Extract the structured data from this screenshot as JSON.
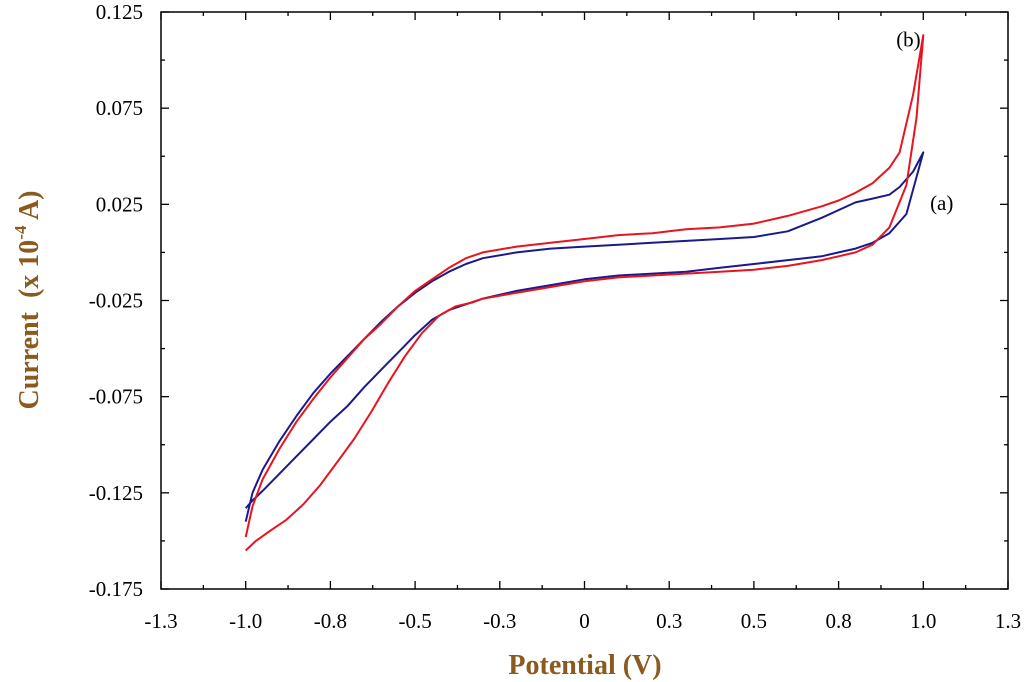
{
  "chart_data": {
    "type": "line",
    "xlabel": "Potential (V)",
    "ylabel_main": "Current",
    "ylabel_unit_prefix": "(x 10",
    "ylabel_unit_exp": "-4",
    "ylabel_unit_suffix": " A)",
    "xlim": [
      -1.25,
      1.25
    ],
    "ylim": [
      -0.175,
      0.125
    ],
    "x_ticks": [
      {
        "value": -1.25,
        "label": "-1.3"
      },
      {
        "value": -1.0,
        "label": "-1.0"
      },
      {
        "value": -0.75,
        "label": "-0.8"
      },
      {
        "value": -0.5,
        "label": "-0.5"
      },
      {
        "value": -0.25,
        "label": "-0.3"
      },
      {
        "value": 0.0,
        "label": "0"
      },
      {
        "value": 0.25,
        "label": "0.3"
      },
      {
        "value": 0.5,
        "label": "0.5"
      },
      {
        "value": 0.75,
        "label": "0.8"
      },
      {
        "value": 1.0,
        "label": "1.0"
      },
      {
        "value": 1.25,
        "label": "1.3"
      }
    ],
    "y_ticks": [
      {
        "value": 0.125,
        "label": "0.125"
      },
      {
        "value": 0.075,
        "label": "0.075"
      },
      {
        "value": 0.025,
        "label": "0.025"
      },
      {
        "value": -0.025,
        "label": "-0.025"
      },
      {
        "value": -0.075,
        "label": "-0.075"
      },
      {
        "value": -0.125,
        "label": "-0.125"
      },
      {
        "value": -0.175,
        "label": "-0.175"
      }
    ],
    "grid": false,
    "series": [
      {
        "name": "(a)",
        "color": "#1a1a8c",
        "x": [
          -1.0,
          -0.98,
          -0.95,
          -0.9,
          -0.85,
          -0.8,
          -0.75,
          -0.7,
          -0.65,
          -0.6,
          -0.55,
          -0.5,
          -0.45,
          -0.4,
          -0.35,
          -0.3,
          -0.2,
          -0.1,
          0.0,
          0.1,
          0.2,
          0.3,
          0.4,
          0.5,
          0.6,
          0.65,
          0.7,
          0.75,
          0.8,
          0.85,
          0.9,
          0.95,
          1.0,
          0.97,
          0.93,
          0.9,
          0.85,
          0.8,
          0.7,
          0.6,
          0.5,
          0.4,
          0.3,
          0.2,
          0.1,
          0.0,
          -0.1,
          -0.2,
          -0.3,
          -0.35,
          -0.4,
          -0.45,
          -0.5,
          -0.55,
          -0.6,
          -0.65,
          -0.7,
          -0.75,
          -0.8,
          -0.85,
          -0.9,
          -0.95,
          -0.98,
          -1.0
        ],
        "y": [
          -0.133,
          -0.129,
          -0.124,
          -0.115,
          -0.106,
          -0.097,
          -0.088,
          -0.08,
          -0.07,
          -0.061,
          -0.052,
          -0.043,
          -0.035,
          -0.03,
          -0.027,
          -0.024,
          -0.02,
          -0.017,
          -0.014,
          -0.012,
          -0.011,
          -0.01,
          -0.008,
          -0.006,
          -0.004,
          -0.003,
          -0.002,
          0.0,
          0.002,
          0.005,
          0.01,
          0.02,
          0.052,
          0.042,
          0.034,
          0.03,
          0.028,
          0.026,
          0.018,
          0.011,
          0.008,
          0.007,
          0.006,
          0.005,
          0.004,
          0.003,
          0.002,
          0.0,
          -0.003,
          -0.006,
          -0.01,
          -0.015,
          -0.021,
          -0.028,
          -0.036,
          -0.045,
          -0.054,
          -0.063,
          -0.073,
          -0.085,
          -0.098,
          -0.113,
          -0.125,
          -0.14
        ]
      },
      {
        "name": "(b)",
        "color": "#e8141e",
        "x": [
          -1.0,
          -0.97,
          -0.93,
          -0.88,
          -0.83,
          -0.78,
          -0.73,
          -0.68,
          -0.63,
          -0.58,
          -0.53,
          -0.48,
          -0.43,
          -0.38,
          -0.33,
          -0.3,
          -0.2,
          -0.1,
          0.0,
          0.1,
          0.2,
          0.3,
          0.4,
          0.5,
          0.6,
          0.7,
          0.75,
          0.8,
          0.85,
          0.9,
          0.95,
          0.98,
          1.0,
          0.97,
          0.93,
          0.9,
          0.85,
          0.8,
          0.75,
          0.7,
          0.6,
          0.5,
          0.4,
          0.3,
          0.2,
          0.1,
          0.0,
          -0.1,
          -0.2,
          -0.3,
          -0.35,
          -0.4,
          -0.45,
          -0.5,
          -0.55,
          -0.6,
          -0.65,
          -0.7,
          -0.75,
          -0.8,
          -0.85,
          -0.9,
          -0.95,
          -0.98,
          -1.0
        ],
        "y": [
          -0.155,
          -0.15,
          -0.145,
          -0.139,
          -0.131,
          -0.121,
          -0.109,
          -0.097,
          -0.083,
          -0.068,
          -0.054,
          -0.042,
          -0.033,
          -0.028,
          -0.026,
          -0.024,
          -0.021,
          -0.018,
          -0.015,
          -0.013,
          -0.012,
          -0.011,
          -0.01,
          -0.009,
          -0.007,
          -0.004,
          -0.002,
          0.0,
          0.004,
          0.013,
          0.035,
          0.07,
          0.113,
          0.082,
          0.052,
          0.044,
          0.036,
          0.031,
          0.027,
          0.024,
          0.019,
          0.015,
          0.013,
          0.012,
          0.01,
          0.009,
          0.007,
          0.005,
          0.003,
          0.0,
          -0.003,
          -0.008,
          -0.014,
          -0.02,
          -0.028,
          -0.037,
          -0.045,
          -0.055,
          -0.065,
          -0.076,
          -0.088,
          -0.102,
          -0.118,
          -0.132,
          -0.148
        ]
      }
    ],
    "annotations": [
      {
        "text": "(a)",
        "x": 1.02,
        "y": 0.022
      },
      {
        "text": "(b)",
        "x": 0.92,
        "y": 0.107
      }
    ]
  }
}
